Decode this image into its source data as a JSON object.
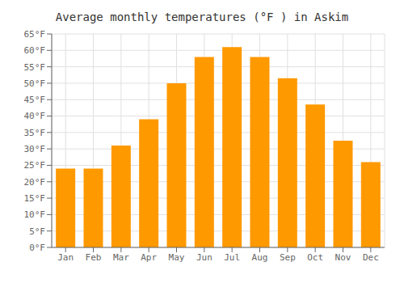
{
  "chart_data": {
    "type": "bar",
    "title": "Average monthly temperatures (°F ) in Askim",
    "categories": [
      "Jan",
      "Feb",
      "Mar",
      "Apr",
      "May",
      "Jun",
      "Jul",
      "Aug",
      "Sep",
      "Oct",
      "Nov",
      "Dec"
    ],
    "values": [
      24,
      24,
      31,
      39,
      50,
      58,
      61,
      58,
      51.5,
      43.5,
      32.5,
      26
    ],
    "color": "#FF9900",
    "ylim": [
      0,
      65
    ],
    "yticks": [
      {
        "value": 0,
        "label": "0°F"
      },
      {
        "value": 5,
        "label": "5°F"
      },
      {
        "value": 10,
        "label": "10°F"
      },
      {
        "value": 15,
        "label": "15°F"
      },
      {
        "value": 20,
        "label": "20°F"
      },
      {
        "value": 25,
        "label": "25°F"
      },
      {
        "value": 30,
        "label": "30°F"
      },
      {
        "value": 35,
        "label": "35°F"
      },
      {
        "value": 40,
        "label": "40°F"
      },
      {
        "value": 45,
        "label": "45°F"
      },
      {
        "value": 50,
        "label": "50°F"
      },
      {
        "value": 55,
        "label": "55°F"
      },
      {
        "value": 60,
        "label": "60°F"
      },
      {
        "value": 65,
        "label": "65°F"
      }
    ],
    "grid": true
  }
}
